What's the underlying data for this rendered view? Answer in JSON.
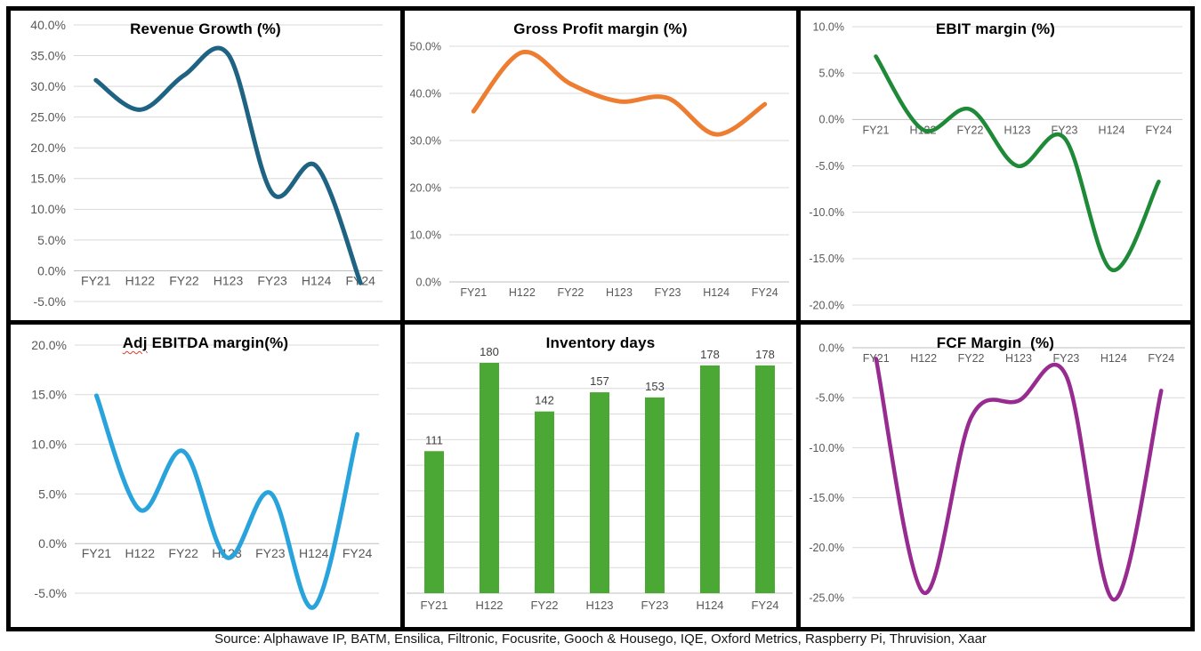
{
  "page": {
    "background": "#FFFFFF",
    "frame_color": "#000000",
    "grid_color": "#D9D9D9",
    "zero_axis_color": "#BFBFBF",
    "axis_label_color": "#595959",
    "data_label_color": "#404040",
    "title_color": "#000000"
  },
  "source_note": "Source: Alphawave IP, BATM, Ensilica, Filtronic, Focusrite, Gooch & Housego, IQE, Oxford Metrics, Raspberry Pi, Thruvision, Xaar",
  "chart_data": [
    {
      "id": "revenue-growth",
      "type": "line",
      "title": "Revenue Growth (%)",
      "categories": [
        "FY21",
        "H122",
        "FY22",
        "H123",
        "FY23",
        "H124",
        "FY24"
      ],
      "values": [
        31.0,
        26.2,
        31.8,
        35.2,
        12.6,
        17.0,
        -2.0
      ],
      "unit": "percent",
      "color": "#1F6383",
      "line_width": 5,
      "ylim": [
        -5,
        40
      ],
      "ystep": 5,
      "y_tick_format": "0.0%",
      "show_y_labels": true,
      "grid": true,
      "legend": "none",
      "x_labels_position": "below-zero-line",
      "smooth": true
    },
    {
      "id": "gross-profit-margin",
      "type": "line",
      "title": "Gross Profit margin (%)",
      "categories": [
        "FY21",
        "H122",
        "FY22",
        "H123",
        "FY23",
        "H124",
        "FY24"
      ],
      "values": [
        36.2,
        48.7,
        42.0,
        38.3,
        39.0,
        31.3,
        37.7
      ],
      "unit": "percent",
      "color": "#ED7D31",
      "line_width": 5,
      "ylim": [
        0,
        50
      ],
      "ystep": 10,
      "y_tick_format": "0.0%",
      "show_y_labels": true,
      "grid": true,
      "legend": "none",
      "x_labels_position": "below-zero-line",
      "smooth": true
    },
    {
      "id": "ebit-margin",
      "type": "line",
      "title": "EBIT margin (%)",
      "categories": [
        "FY21",
        "H122",
        "FY22",
        "H123",
        "FY23",
        "H124",
        "FY24"
      ],
      "values": [
        6.8,
        -1.1,
        1.1,
        -5.0,
        -2.0,
        -16.2,
        -6.7
      ],
      "unit": "percent",
      "color": "#1E8A38",
      "line_width": 4.5,
      "ylim": [
        -20,
        10
      ],
      "ystep": 5,
      "y_tick_format": "0.0%",
      "show_y_labels": true,
      "grid": true,
      "legend": "none",
      "x_labels_position": "below-zero-line",
      "smooth": true
    },
    {
      "id": "adj-ebitda-margin",
      "type": "line",
      "title": "Adj EBITDA margin(%)",
      "title_flagged": "Adj",
      "title_rest": " EBITDA margin(%)",
      "spellcheck_underline": true,
      "categories": [
        "FY21",
        "H122",
        "FY22",
        "H123",
        "FY23",
        "H124",
        "FY24"
      ],
      "values": [
        14.9,
        3.4,
        9.3,
        -1.4,
        5.1,
        -6.4,
        11.0
      ],
      "unit": "percent",
      "color": "#29A3DC",
      "line_width": 5,
      "ylim": [
        -5,
        20
      ],
      "ystep": 5,
      "y_tick_format": "0.0%",
      "show_y_labels": true,
      "grid": true,
      "legend": "none",
      "x_labels_position": "below-zero-line",
      "smooth": true
    },
    {
      "id": "inventory-days",
      "type": "bar",
      "title": "Inventory days",
      "categories": [
        "FY21",
        "H122",
        "FY22",
        "H123",
        "FY23",
        "H124",
        "FY24"
      ],
      "values": [
        111,
        180,
        142,
        157,
        153,
        178,
        178
      ],
      "data_labels": [
        111,
        180,
        142,
        157,
        153,
        178,
        178
      ],
      "unit": "days",
      "color": "#4CA834",
      "ylim": [
        0,
        180
      ],
      "ystep": 20,
      "show_y_labels": false,
      "grid": true,
      "legend": "none",
      "x_labels_position": "bottom"
    },
    {
      "id": "fcf-margin",
      "type": "line",
      "title": "FCF Margin  (%)",
      "categories": [
        "FY21",
        "H122",
        "FY22",
        "H123",
        "FY23",
        "H124",
        "FY24"
      ],
      "values": [
        -1.1,
        -24.5,
        -7.0,
        -5.3,
        -2.8,
        -25.2,
        -4.3
      ],
      "unit": "percent",
      "color": "#982B90",
      "line_width": 4.5,
      "ylim": [
        -25,
        0
      ],
      "ystep": 5,
      "y_tick_format": "0.0%",
      "show_y_labels": true,
      "grid": true,
      "legend": "none",
      "x_labels_position": "below-zero-line",
      "smooth": true
    }
  ]
}
